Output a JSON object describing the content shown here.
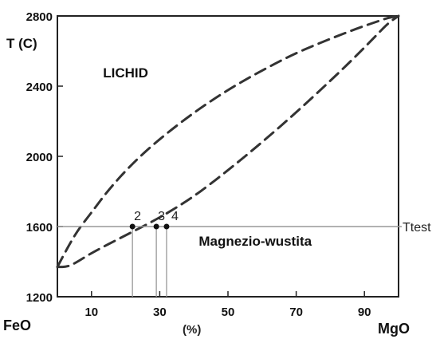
{
  "chart_data": {
    "type": "line",
    "title": "",
    "ylabel": "T (C)",
    "xlabel": "(%)",
    "x_left_label": "FeO",
    "x_right_label": "MgO",
    "xlim": [
      0,
      100
    ],
    "ylim": [
      1200,
      2800
    ],
    "x_ticks": [
      10,
      30,
      50,
      70,
      90
    ],
    "y_ticks": [
      1200,
      1600,
      2000,
      2400,
      2800
    ],
    "grid": false,
    "regions": [
      {
        "label": "LICHID",
        "x": 20,
        "y": 2450
      },
      {
        "label": "Magnezio-wustita",
        "x": 58,
        "y": 1490
      }
    ],
    "reference_line": {
      "label": "Ttest",
      "y": 1600
    },
    "points": [
      {
        "label": "2",
        "x": 22,
        "y": 1600
      },
      {
        "label": "3",
        "x": 29,
        "y": 1600
      },
      {
        "label": "4",
        "x": 32,
        "y": 1600
      }
    ],
    "series": [
      {
        "style": "dashed",
        "x": [
          0,
          3,
          6,
          10,
          15,
          22,
          30,
          40,
          50,
          60,
          70,
          80,
          88,
          94,
          97,
          100
        ],
        "y": [
          1370,
          1480,
          1580,
          1680,
          1810,
          1960,
          2100,
          2250,
          2380,
          2490,
          2590,
          2670,
          2730,
          2770,
          2790,
          2800
        ]
      },
      {
        "style": "dashed",
        "x": [
          0,
          3,
          6,
          10,
          20,
          30,
          40,
          50,
          60,
          70,
          80,
          88,
          94,
          97,
          100
        ],
        "y": [
          1370,
          1370,
          1400,
          1450,
          1550,
          1650,
          1770,
          1920,
          2080,
          2250,
          2430,
          2580,
          2700,
          2760,
          2800
        ]
      }
    ]
  }
}
